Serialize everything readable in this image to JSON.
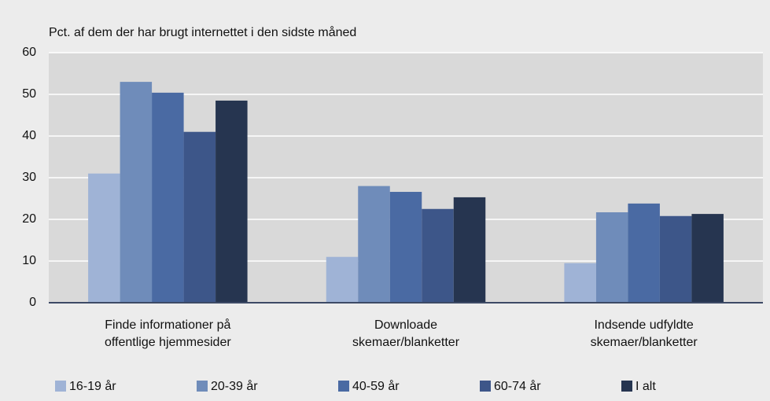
{
  "chart_data": {
    "type": "bar",
    "title": "Pct. af dem der har brugt internettet i den sidste måned",
    "categories": [
      "Finde informationer på\noffentlige hjemmesider",
      "Downloade\nskemaer/blanketter",
      "Indsende udfyldte\nskemaer/blanketter"
    ],
    "series": [
      {
        "name": "16-19 år",
        "color": "#9fb3d6",
        "values": [
          31,
          11,
          9.5
        ]
      },
      {
        "name": "20-39 år",
        "color": "#6f8cba",
        "values": [
          53,
          28,
          21.7
        ]
      },
      {
        "name": "40-59 år",
        "color": "#4a6aa3",
        "values": [
          50.4,
          26.6,
          23.8
        ]
      },
      {
        "name": "60-74 år",
        "color": "#3d5689",
        "values": [
          41,
          22.5,
          20.8
        ]
      },
      {
        "name": "I alt",
        "color": "#263550",
        "values": [
          48.5,
          25.3,
          21.3
        ]
      }
    ],
    "ylim": [
      0,
      60
    ],
    "yticks": [
      0,
      10,
      20,
      30,
      40,
      50,
      60
    ],
    "grid": true,
    "legend": "bottom"
  }
}
